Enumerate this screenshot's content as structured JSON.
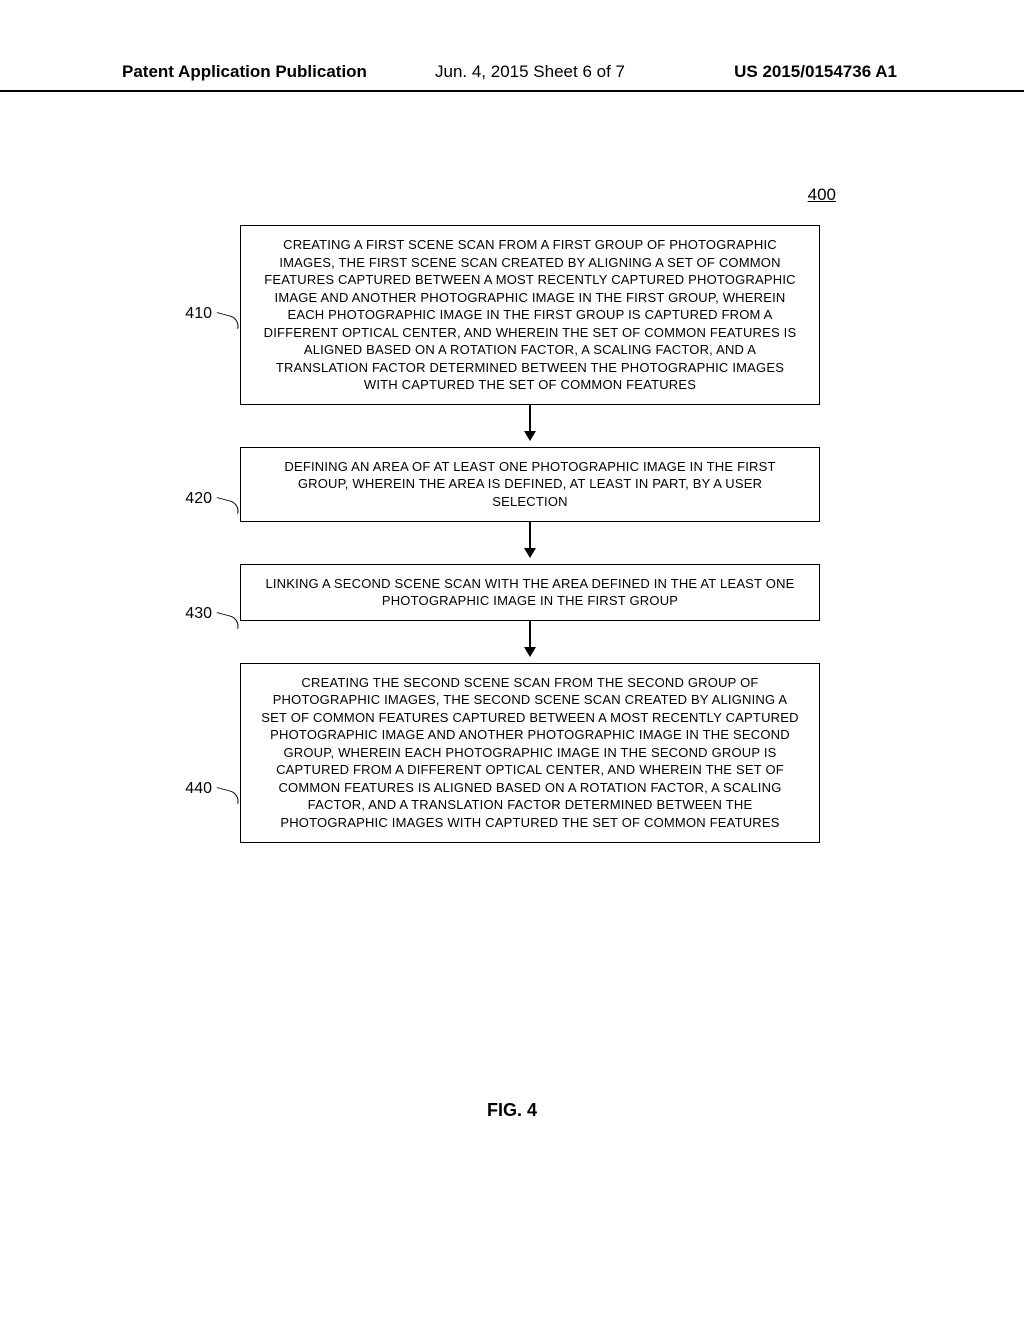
{
  "header": {
    "left": "Patent Application Publication",
    "center": "Jun. 4, 2015   Sheet 6 of 7",
    "right": "US 2015/0154736 A1"
  },
  "figure_ref": "400",
  "figure_label": "FIG. 4",
  "flowchart": {
    "type": "flowchart",
    "nodes": [
      {
        "id": "410",
        "callout": "410",
        "text": "CREATING A FIRST SCENE SCAN FROM A FIRST GROUP OF PHOTOGRAPHIC IMAGES, THE FIRST SCENE SCAN CREATED BY ALIGNING A SET OF COMMON FEATURES CAPTURED BETWEEN A MOST RECENTLY CAPTURED PHOTOGRAPHIC IMAGE AND ANOTHER PHOTOGRAPHIC IMAGE IN THE FIRST GROUP, WHEREIN EACH PHOTOGRAPHIC IMAGE IN THE FIRST GROUP IS CAPTURED FROM A DIFFERENT OPTICAL CENTER, AND WHEREIN THE SET OF COMMON FEATURES IS ALIGNED BASED ON A ROTATION FACTOR, A SCALING FACTOR, AND A TRANSLATION FACTOR DETERMINED BETWEEN THE PHOTOGRAPHIC IMAGES WITH CAPTURED THE SET OF COMMON FEATURES"
      },
      {
        "id": "420",
        "callout": "420",
        "text": "DEFINING AN AREA OF AT LEAST ONE PHOTOGRAPHIC IMAGE IN THE FIRST GROUP, WHEREIN THE AREA IS DEFINED, AT LEAST IN PART, BY A USER SELECTION"
      },
      {
        "id": "430",
        "callout": "430",
        "text": "LINKING A SECOND SCENE SCAN WITH THE AREA DEFINED IN THE AT LEAST ONE PHOTOGRAPHIC IMAGE IN THE FIRST GROUP"
      },
      {
        "id": "440",
        "callout": "440",
        "text": "CREATING THE SECOND SCENE SCAN FROM THE SECOND GROUP OF PHOTOGRAPHIC IMAGES, THE SECOND SCENE SCAN CREATED BY ALIGNING A SET OF COMMON FEATURES CAPTURED BETWEEN A MOST RECENTLY CAPTURED PHOTOGRAPHIC IMAGE AND ANOTHER PHOTOGRAPHIC IMAGE IN THE SECOND GROUP, WHEREIN EACH PHOTOGRAPHIC IMAGE IN THE SECOND GROUP IS CAPTURED FROM A DIFFERENT OPTICAL CENTER, AND WHEREIN THE SET OF COMMON FEATURES IS ALIGNED BASED ON A ROTATION FACTOR, A SCALING FACTOR, AND A TRANSLATION FACTOR DETERMINED BETWEEN THE PHOTOGRAPHIC IMAGES WITH CAPTURED THE SET OF COMMON FEATURES"
      }
    ],
    "styling": {
      "box_border_color": "#000000",
      "box_border_width": 1.5,
      "box_fill": "#ffffff",
      "box_font_size": 13,
      "box_text_color": "#000000",
      "arrow_color": "#000000",
      "arrow_stem_height": 28,
      "arrow_head_size": 10,
      "callout_font_size": 16,
      "page_background": "#ffffff"
    }
  }
}
